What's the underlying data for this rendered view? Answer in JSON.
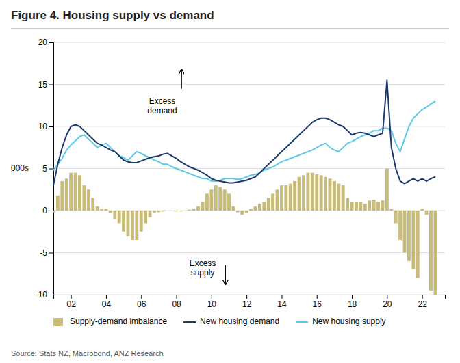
{
  "chart_data": {
    "type": "bar",
    "title": "Figure 4.  Housing supply vs demand",
    "source": "Source: Stats NZ, Macrobond, ANZ Research",
    "ylabel": "000s",
    "x": [
      2001.0,
      2001.25,
      2001.5,
      2001.75,
      2002.0,
      2002.25,
      2002.5,
      2002.75,
      2003.0,
      2003.25,
      2003.5,
      2003.75,
      2004.0,
      2004.25,
      2004.5,
      2004.75,
      2005.0,
      2005.25,
      2005.5,
      2005.75,
      2006.0,
      2006.25,
      2006.5,
      2006.75,
      2007.0,
      2007.25,
      2007.5,
      2007.75,
      2008.0,
      2008.25,
      2008.5,
      2008.75,
      2009.0,
      2009.25,
      2009.5,
      2009.75,
      2010.0,
      2010.25,
      2010.5,
      2010.75,
      2011.0,
      2011.25,
      2011.5,
      2011.75,
      2012.0,
      2012.25,
      2012.5,
      2012.75,
      2013.0,
      2013.25,
      2013.5,
      2013.75,
      2014.0,
      2014.25,
      2014.5,
      2014.75,
      2015.0,
      2015.25,
      2015.5,
      2015.75,
      2016.0,
      2016.25,
      2016.5,
      2016.75,
      2017.0,
      2017.25,
      2017.5,
      2017.75,
      2018.0,
      2018.25,
      2018.5,
      2018.75,
      2019.0,
      2019.25,
      2019.5,
      2019.75,
      2020.0,
      2020.25,
      2020.5,
      2020.75,
      2021.0,
      2021.25,
      2021.5,
      2021.75,
      2022.0,
      2022.25,
      2022.5,
      2022.75
    ],
    "series": [
      {
        "name": "Supply-demand imbalance",
        "type": "bar",
        "color": "#C8BC7A",
        "values": [
          -0.2,
          1.8,
          3.5,
          3.8,
          4.5,
          4.5,
          4.2,
          3.0,
          2.5,
          1.5,
          0.5,
          0.2,
          0.2,
          -0.3,
          -1.0,
          -1.5,
          -2.5,
          -3.0,
          -3.5,
          -3.5,
          -2.5,
          -1.5,
          -0.8,
          -0.3,
          -0.2,
          -0.1,
          0.0,
          0.0,
          -0.1,
          -0.1,
          0.0,
          0.1,
          0.2,
          0.5,
          1.0,
          2.0,
          2.5,
          3.0,
          2.8,
          2.5,
          2.0,
          0.5,
          -0.2,
          -0.5,
          -0.3,
          0.2,
          0.5,
          0.8,
          1.0,
          1.5,
          2.0,
          2.5,
          3.0,
          3.0,
          3.2,
          3.5,
          4.0,
          4.2,
          4.5,
          4.5,
          4.3,
          4.2,
          4.0,
          3.8,
          3.5,
          3.2,
          3.0,
          1.5,
          1.0,
          1.0,
          1.0,
          0.8,
          1.2,
          1.3,
          1.0,
          1.2,
          5.0,
          0.2,
          -1.5,
          -3.5,
          -5.0,
          -6.0,
          -7.0,
          -8.0,
          0.2,
          -0.5,
          -9.5,
          -10.0
        ]
      },
      {
        "name": "New housing demand",
        "type": "line",
        "color": "#1B3A6B",
        "values": [
          3.0,
          5.5,
          7.5,
          9.0,
          10.0,
          10.2,
          10.0,
          9.5,
          9.0,
          8.5,
          8.0,
          7.8,
          7.5,
          7.2,
          7.0,
          6.5,
          6.0,
          5.8,
          5.7,
          5.7,
          5.9,
          6.1,
          6.3,
          6.4,
          6.5,
          6.7,
          6.8,
          6.5,
          6.2,
          5.8,
          5.5,
          5.2,
          5.0,
          4.8,
          4.5,
          4.2,
          3.8,
          3.6,
          3.5,
          3.4,
          3.3,
          3.3,
          3.4,
          3.5,
          3.6,
          3.8,
          4.0,
          4.5,
          5.0,
          5.5,
          6.0,
          6.5,
          7.0,
          7.5,
          8.0,
          8.5,
          9.0,
          9.5,
          10.0,
          10.5,
          10.8,
          11.0,
          11.0,
          10.8,
          10.5,
          10.2,
          10.0,
          9.5,
          9.0,
          9.2,
          9.3,
          9.2,
          9.0,
          8.8,
          9.0,
          9.2,
          15.5,
          7.5,
          5.0,
          3.5,
          3.2,
          3.5,
          3.8,
          3.5,
          3.8,
          3.5,
          3.8,
          4.0
        ]
      },
      {
        "name": "New housing supply",
        "type": "line",
        "color": "#5BC8E8",
        "values": [
          4.8,
          5.5,
          6.2,
          7.2,
          7.8,
          8.3,
          8.8,
          9.0,
          8.5,
          8.0,
          7.5,
          7.8,
          8.0,
          7.5,
          7.0,
          6.5,
          6.3,
          6.0,
          6.5,
          7.0,
          6.8,
          6.5,
          6.3,
          6.0,
          5.8,
          5.5,
          5.5,
          5.2,
          5.0,
          4.8,
          4.6,
          4.4,
          4.2,
          4.0,
          3.8,
          3.8,
          3.5,
          3.5,
          3.6,
          3.8,
          3.8,
          3.8,
          3.7,
          3.8,
          4.0,
          4.2,
          4.3,
          4.5,
          4.8,
          5.0,
          5.2,
          5.5,
          5.8,
          6.0,
          6.2,
          6.4,
          6.6,
          6.8,
          7.0,
          7.2,
          7.5,
          7.8,
          8.0,
          7.5,
          7.2,
          7.0,
          7.5,
          8.0,
          8.2,
          8.5,
          8.8,
          9.0,
          9.2,
          9.5,
          9.5,
          9.8,
          9.8,
          9.5,
          8.0,
          7.0,
          8.5,
          10.0,
          11.0,
          11.5,
          12.0,
          12.3,
          12.7,
          13.0
        ]
      }
    ],
    "xlim": [
      2001.0,
      2023.3
    ],
    "xticks": [
      {
        "value": 2002,
        "label": "02"
      },
      {
        "value": 2004,
        "label": "04"
      },
      {
        "value": 2006,
        "label": "06"
      },
      {
        "value": 2008,
        "label": "08"
      },
      {
        "value": 2010,
        "label": "10"
      },
      {
        "value": 2012,
        "label": "12"
      },
      {
        "value": 2014,
        "label": "14"
      },
      {
        "value": 2016,
        "label": "16"
      },
      {
        "value": 2018,
        "label": "18"
      },
      {
        "value": 2020,
        "label": "20"
      },
      {
        "value": 2022,
        "label": "22"
      }
    ],
    "ylim": [
      -10,
      20
    ],
    "yticks": [
      -10,
      -5,
      0,
      5,
      10,
      15,
      20
    ],
    "grid": true,
    "legend": "bottom",
    "annotations": [
      {
        "text": "Excess\ndemand",
        "x": 2007.2,
        "y": 13.5,
        "arrow": {
          "x": 2008.3,
          "y_from": 14.5,
          "y_to": 16.8
        }
      },
      {
        "text": "Excess\nsupply",
        "x": 2009.5,
        "y": -5.8,
        "arrow": {
          "x": 2010.8,
          "y_from": -6.5,
          "y_to": -8.8
        }
      }
    ]
  }
}
